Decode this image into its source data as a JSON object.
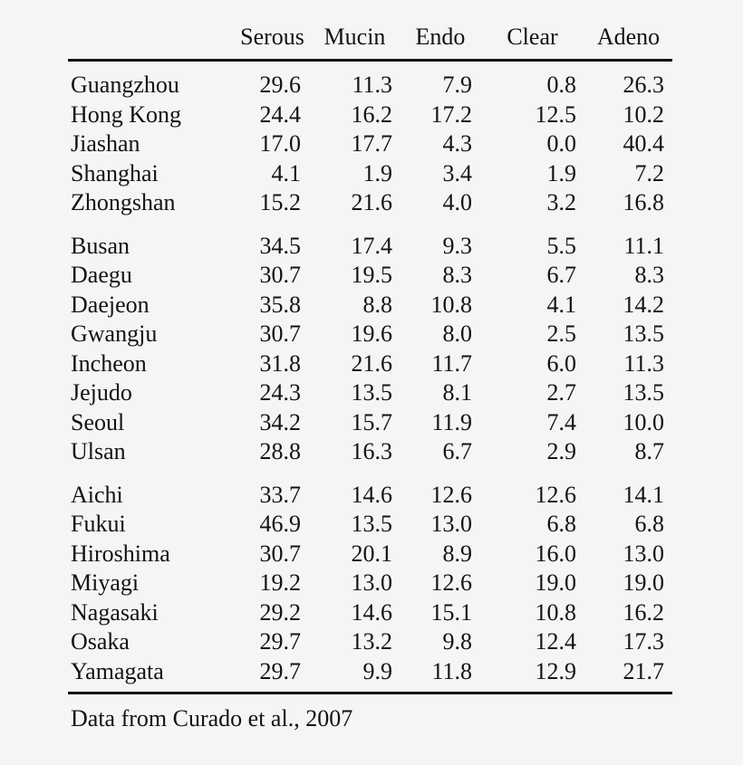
{
  "page": {
    "background_color": "#f5f5f6",
    "text_color": "#131313",
    "rule_color": "#131313"
  },
  "table": {
    "columns": [
      "Serous",
      "Mucin",
      "Endo",
      "Clear",
      "Adeno"
    ],
    "groups": [
      {
        "rows": [
          {
            "city": "Guangzhou",
            "values": [
              "29.6",
              "11.3",
              "7.9",
              "0.8",
              "26.3"
            ]
          },
          {
            "city": "Hong Kong",
            "values": [
              "24.4",
              "16.2",
              "17.2",
              "12.5",
              "10.2"
            ]
          },
          {
            "city": "Jiashan",
            "values": [
              "17.0",
              "17.7",
              "4.3",
              "0.0",
              "40.4"
            ]
          },
          {
            "city": "Shanghai",
            "values": [
              "4.1",
              "1.9",
              "3.4",
              "1.9",
              "7.2"
            ]
          },
          {
            "city": "Zhongshan",
            "values": [
              "15.2",
              "21.6",
              "4.0",
              "3.2",
              "16.8"
            ]
          }
        ]
      },
      {
        "rows": [
          {
            "city": "Busan",
            "values": [
              "34.5",
              "17.4",
              "9.3",
              "5.5",
              "11.1"
            ]
          },
          {
            "city": "Daegu",
            "values": [
              "30.7",
              "19.5",
              "8.3",
              "6.7",
              "8.3"
            ]
          },
          {
            "city": "Daejeon",
            "values": [
              "35.8",
              "8.8",
              "10.8",
              "4.1",
              "14.2"
            ]
          },
          {
            "city": "Gwangju",
            "values": [
              "30.7",
              "19.6",
              "8.0",
              "2.5",
              "13.5"
            ]
          },
          {
            "city": "Incheon",
            "values": [
              "31.8",
              "21.6",
              "11.7",
              "6.0",
              "11.3"
            ]
          },
          {
            "city": "Jejudo",
            "values": [
              "24.3",
              "13.5",
              "8.1",
              "2.7",
              "13.5"
            ]
          },
          {
            "city": "Seoul",
            "values": [
              "34.2",
              "15.7",
              "11.9",
              "7.4",
              "10.0"
            ]
          },
          {
            "city": "Ulsan",
            "values": [
              "28.8",
              "16.3",
              "6.7",
              "2.9",
              "8.7"
            ]
          }
        ]
      },
      {
        "rows": [
          {
            "city": "Aichi",
            "values": [
              "33.7",
              "14.6",
              "12.6",
              "12.6",
              "14.1"
            ]
          },
          {
            "city": "Fukui",
            "values": [
              "46.9",
              "13.5",
              "13.0",
              "6.8",
              "6.8"
            ]
          },
          {
            "city": "Hiroshima",
            "values": [
              "30.7",
              "20.1",
              "8.9",
              "16.0",
              "13.0"
            ]
          },
          {
            "city": "Miyagi",
            "values": [
              "19.2",
              "13.0",
              "12.6",
              "19.0",
              "19.0"
            ]
          },
          {
            "city": "Nagasaki",
            "values": [
              "29.2",
              "14.6",
              "15.1",
              "10.8",
              "16.2"
            ]
          },
          {
            "city": "Osaka",
            "values": [
              "29.7",
              "13.2",
              "9.8",
              "12.4",
              "17.3"
            ]
          },
          {
            "city": "Yamagata",
            "values": [
              "29.7",
              "9.9",
              "11.8",
              "12.9",
              "21.7"
            ]
          }
        ]
      }
    ],
    "footnote": "Data from Curado et al., 2007"
  }
}
